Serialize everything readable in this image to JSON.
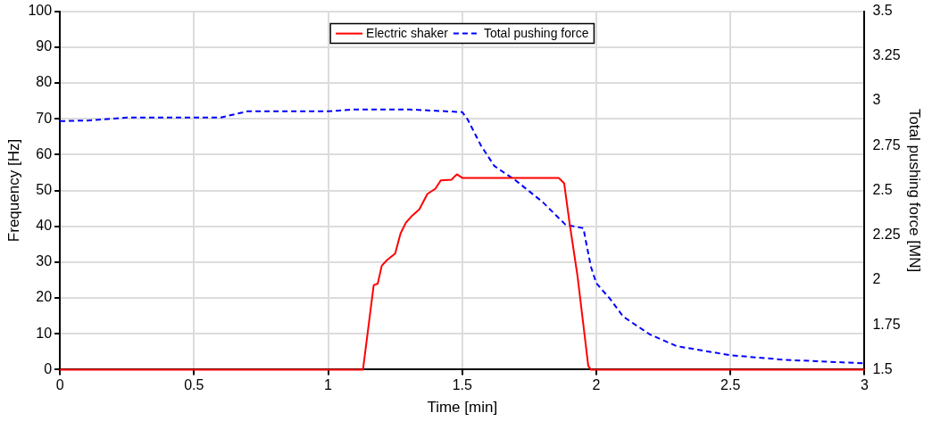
{
  "chart_data": {
    "type": "line",
    "xlabel": "Time [min]",
    "ylabel": "Frequency [Hz]",
    "y2label": "Total pushing force [MN]",
    "xlim": [
      0,
      3
    ],
    "xticks": [
      0,
      0.5,
      1,
      1.5,
      2,
      2.5,
      3
    ],
    "ylim": [
      0,
      100
    ],
    "yticks": [
      0,
      10,
      20,
      30,
      40,
      50,
      60,
      70,
      80,
      90,
      100
    ],
    "y2lim": [
      1.5,
      3.5
    ],
    "y2ticks": [
      1.5,
      1.75,
      2,
      2.25,
      2.5,
      2.75,
      3,
      3.25,
      3.5
    ],
    "grid": true,
    "legend": "top",
    "marker": "none",
    "series": [
      {
        "name": "Electric shaker",
        "color": "#ff0000",
        "line_style": "solid",
        "x": [
          0,
          1.13,
          1.17,
          1.185,
          1.2,
          1.22,
          1.25,
          1.27,
          1.29,
          1.31,
          1.34,
          1.37,
          1.4,
          1.42,
          1.46,
          1.48,
          1.5,
          1.51,
          1.86,
          1.88,
          1.9,
          1.93,
          1.95,
          1.97,
          1.98,
          3
        ],
        "values": [
          0,
          0,
          23.6,
          24,
          29,
          30.6,
          32.4,
          38,
          41,
          42.7,
          44.7,
          49,
          50.5,
          52.8,
          53,
          54.5,
          53.5,
          53.5,
          53.5,
          52,
          41,
          26,
          13.5,
          1,
          0,
          0
        ]
      },
      {
        "name": "Total pushing force",
        "color": "#0000ff",
        "line_style": "dashed",
        "axis": "y2",
        "x": [
          0,
          0.1,
          0.25,
          0.6,
          0.7,
          1.0,
          1.1,
          1.3,
          1.5,
          1.52,
          1.57,
          1.62,
          1.7,
          1.8,
          1.885,
          1.952,
          1.96,
          1.98,
          2.0,
          2.05,
          2.1,
          2.2,
          2.3,
          2.5,
          2.7,
          3.0
        ],
        "values": [
          2.887,
          2.89,
          2.907,
          2.907,
          2.942,
          2.942,
          2.952,
          2.952,
          2.937,
          2.897,
          2.75,
          2.636,
          2.555,
          2.435,
          2.309,
          2.289,
          2.224,
          2.073,
          1.982,
          1.897,
          1.796,
          1.696,
          1.631,
          1.58,
          1.555,
          1.535
        ]
      }
    ]
  }
}
